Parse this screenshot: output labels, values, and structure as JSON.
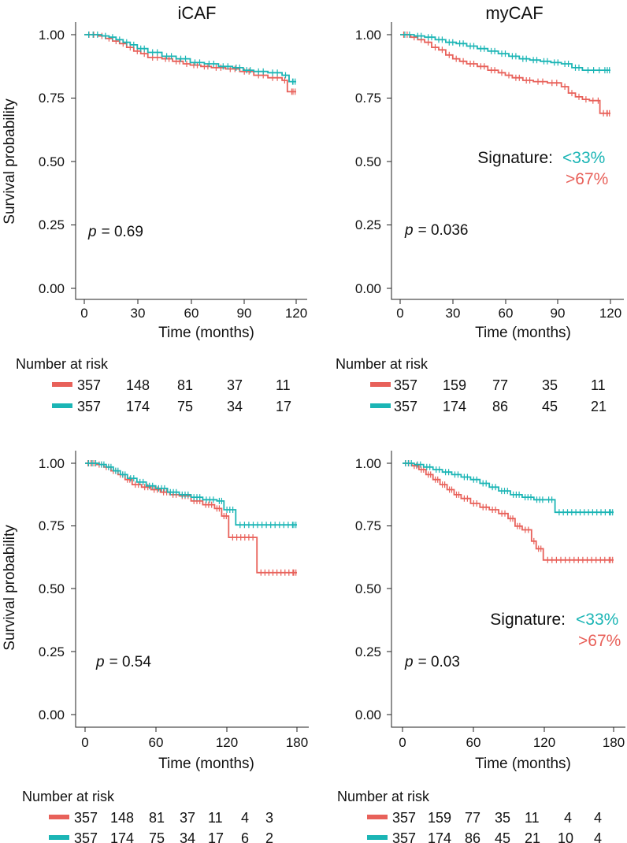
{
  "chart_data": [
    {
      "type": "line",
      "title": "iCAF",
      "xlabel": "Time (months)",
      "ylabel": "Survival probability",
      "xlim": [
        0,
        120
      ],
      "ylim": [
        0,
        1.0
      ],
      "xticks": [
        "0",
        "30",
        "60",
        "90",
        "120"
      ],
      "yticks": [
        "0.00",
        "0.25",
        "0.50",
        "0.75",
        "1.00"
      ],
      "xtick_values": [
        0,
        30,
        60,
        90,
        120
      ],
      "ytick_values": [
        0,
        0.25,
        0.5,
        0.75,
        1.0
      ],
      "p_label": "p",
      "p_value": "= 0.69",
      "series": [
        {
          "name": ">67%",
          "color": "#E8615A",
          "x": [
            0,
            8,
            12,
            16,
            20,
            24,
            28,
            32,
            36,
            44,
            50,
            56,
            60,
            66,
            72,
            80,
            88,
            96,
            104,
            112,
            115,
            120
          ],
          "y": [
            1.0,
            0.995,
            0.985,
            0.975,
            0.965,
            0.95,
            0.935,
            0.925,
            0.91,
            0.905,
            0.895,
            0.885,
            0.88,
            0.875,
            0.87,
            0.865,
            0.855,
            0.84,
            0.83,
            0.82,
            0.775,
            0.775
          ]
        },
        {
          "name": "<33%",
          "color": "#1BB5B5",
          "x": [
            0,
            10,
            14,
            18,
            22,
            26,
            30,
            36,
            44,
            52,
            60,
            68,
            76,
            84,
            90,
            96,
            104,
            112,
            116,
            120
          ],
          "y": [
            1.0,
            0.995,
            0.99,
            0.98,
            0.97,
            0.96,
            0.945,
            0.93,
            0.915,
            0.905,
            0.89,
            0.885,
            0.875,
            0.87,
            0.86,
            0.855,
            0.85,
            0.84,
            0.815,
            0.815
          ]
        }
      ],
      "risk_table": {
        "title": "Number at risk",
        "rows": [
          {
            "color": "#E8615A",
            "values": [
              "357",
              "148",
              "81",
              "37",
              "11"
            ]
          },
          {
            "color": "#1BB5B5",
            "values": [
              "357",
              "174",
              "75",
              "34",
              "17"
            ]
          }
        ]
      }
    },
    {
      "type": "line",
      "title": "myCAF",
      "xlabel": "Time (months)",
      "ylabel": "",
      "xlim": [
        0,
        120
      ],
      "ylim": [
        0,
        1.0
      ],
      "xticks": [
        "0",
        "30",
        "60",
        "90",
        "120"
      ],
      "yticks": [
        "0.00",
        "0.25",
        "0.50",
        "0.75",
        "1.00"
      ],
      "xtick_values": [
        0,
        30,
        60,
        90,
        120
      ],
      "ytick_values": [
        0,
        0.25,
        0.5,
        0.75,
        1.0
      ],
      "p_label": "p",
      "p_value": "= 0.036",
      "legend": {
        "title": "Signature:",
        "labels": [
          "<33%",
          ">67%"
        ]
      },
      "series": [
        {
          "name": ">67%",
          "color": "#E8615A",
          "x": [
            0,
            6,
            10,
            14,
            18,
            22,
            26,
            30,
            34,
            38,
            44,
            50,
            56,
            60,
            64,
            70,
            76,
            84,
            92,
            96,
            100,
            104,
            108,
            112,
            114,
            120
          ],
          "y": [
            1.0,
            0.99,
            0.98,
            0.97,
            0.95,
            0.94,
            0.92,
            0.905,
            0.895,
            0.885,
            0.875,
            0.86,
            0.85,
            0.84,
            0.83,
            0.82,
            0.815,
            0.81,
            0.795,
            0.77,
            0.755,
            0.745,
            0.74,
            0.74,
            0.69,
            0.69
          ]
        },
        {
          "name": "<33%",
          "color": "#1BB5B5",
          "x": [
            0,
            8,
            14,
            20,
            26,
            32,
            38,
            44,
            50,
            56,
            62,
            68,
            74,
            80,
            86,
            92,
            98,
            104,
            120
          ],
          "y": [
            1.0,
            0.995,
            0.99,
            0.98,
            0.97,
            0.965,
            0.955,
            0.945,
            0.935,
            0.925,
            0.915,
            0.905,
            0.9,
            0.895,
            0.89,
            0.885,
            0.87,
            0.86,
            0.86
          ]
        }
      ],
      "risk_table": {
        "title": "Number at risk",
        "rows": [
          {
            "color": "#E8615A",
            "values": [
              "357",
              "159",
              "77",
              "35",
              "11"
            ]
          },
          {
            "color": "#1BB5B5",
            "values": [
              "357",
              "174",
              "86",
              "45",
              "21"
            ]
          }
        ]
      }
    },
    {
      "type": "line",
      "title": "",
      "xlabel": "Time (months)",
      "ylabel": "Survival probability",
      "xlim": [
        0,
        180
      ],
      "ylim": [
        0,
        1.0
      ],
      "xticks": [
        "0",
        "60",
        "120",
        "180"
      ],
      "yticks": [
        "0.00",
        "0.25",
        "0.50",
        "0.75",
        "1.00"
      ],
      "xtick_values": [
        0,
        60,
        120,
        180
      ],
      "ytick_values": [
        0,
        0.25,
        0.5,
        0.75,
        1.0
      ],
      "p_label": "p",
      "p_value": "= 0.54",
      "series": [
        {
          "name": ">67%",
          "color": "#E8615A",
          "x": [
            0,
            10,
            16,
            22,
            28,
            34,
            40,
            48,
            56,
            64,
            72,
            80,
            90,
            100,
            110,
            116,
            122,
            146,
            180
          ],
          "y": [
            1.0,
            0.995,
            0.985,
            0.97,
            0.955,
            0.935,
            0.915,
            0.905,
            0.895,
            0.885,
            0.875,
            0.87,
            0.85,
            0.835,
            0.82,
            0.79,
            0.705,
            0.565,
            0.565
          ]
        },
        {
          "name": "<33%",
          "color": "#1BB5B5",
          "x": [
            0,
            12,
            18,
            24,
            30,
            36,
            44,
            52,
            60,
            70,
            80,
            90,
            100,
            112,
            118,
            128,
            180
          ],
          "y": [
            1.0,
            0.995,
            0.985,
            0.97,
            0.955,
            0.94,
            0.925,
            0.91,
            0.9,
            0.885,
            0.875,
            0.865,
            0.855,
            0.85,
            0.815,
            0.755,
            0.755
          ]
        }
      ],
      "risk_table": {
        "title": "Number at risk",
        "rows": [
          {
            "color": "#E8615A",
            "values": [
              "357",
              "148",
              "81",
              "37",
              "11",
              "4",
              "3"
            ]
          },
          {
            "color": "#1BB5B5",
            "values": [
              "357",
              "174",
              "75",
              "34",
              "17",
              "6",
              "2"
            ]
          }
        ]
      }
    },
    {
      "type": "line",
      "title": "",
      "xlabel": "Time (months)",
      "ylabel": "",
      "xlim": [
        0,
        180
      ],
      "ylim": [
        0,
        1.0
      ],
      "xticks": [
        "0",
        "60",
        "120",
        "180"
      ],
      "yticks": [
        "0.00",
        "0.25",
        "0.50",
        "0.75",
        "1.00"
      ],
      "xtick_values": [
        0,
        60,
        120,
        180
      ],
      "ytick_values": [
        0,
        0.25,
        0.5,
        0.75,
        1.0
      ],
      "p_label": "p",
      "p_value": "= 0.03",
      "legend": {
        "title": "Signature:",
        "labels": [
          "<33%",
          ">67%"
        ]
      },
      "series": [
        {
          "name": ">67%",
          "color": "#E8615A",
          "x": [
            0,
            8,
            14,
            20,
            26,
            32,
            38,
            44,
            50,
            58,
            66,
            74,
            82,
            90,
            96,
            102,
            110,
            114,
            120,
            180
          ],
          "y": [
            1.0,
            0.99,
            0.975,
            0.955,
            0.935,
            0.915,
            0.895,
            0.875,
            0.86,
            0.84,
            0.825,
            0.815,
            0.8,
            0.78,
            0.75,
            0.735,
            0.69,
            0.66,
            0.615,
            0.615
          ]
        },
        {
          "name": "<33%",
          "color": "#1BB5B5",
          "x": [
            0,
            10,
            18,
            26,
            34,
            42,
            50,
            58,
            66,
            74,
            82,
            92,
            102,
            112,
            122,
            130,
            180
          ],
          "y": [
            1.0,
            0.995,
            0.985,
            0.975,
            0.965,
            0.955,
            0.945,
            0.935,
            0.92,
            0.905,
            0.89,
            0.875,
            0.865,
            0.855,
            0.855,
            0.805,
            0.805
          ]
        }
      ],
      "risk_table": {
        "title": "Number at risk",
        "rows": [
          {
            "color": "#E8615A",
            "values": [
              "357",
              "159",
              "77",
              "35",
              "11",
              "4",
              "4"
            ]
          },
          {
            "color": "#1BB5B5",
            "values": [
              "357",
              "174",
              "86",
              "45",
              "21",
              "10",
              "4"
            ]
          }
        ]
      }
    }
  ]
}
